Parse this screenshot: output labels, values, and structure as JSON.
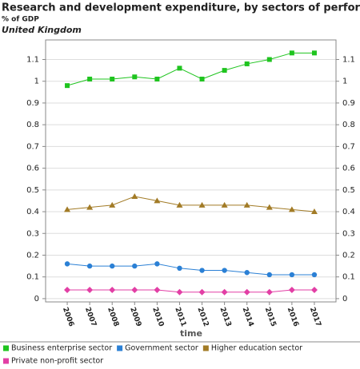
{
  "chart_data": {
    "type": "line",
    "title": "Research and development expenditure, by sectors of performance",
    "subtitle": "% of GDP",
    "annotation": "United Kingdom",
    "x_label": "time",
    "categories": [
      "2006",
      "2007",
      "2008",
      "2009",
      "2010",
      "2011",
      "2012",
      "2013",
      "2014",
      "2015",
      "2016",
      "2017"
    ],
    "series": [
      {
        "name": "Business enterprise sector",
        "color": "#1fc41f",
        "marker": "square",
        "values": [
          0.98,
          1.01,
          1.01,
          1.02,
          1.01,
          1.06,
          1.01,
          1.05,
          1.08,
          1.1,
          1.13,
          1.13
        ]
      },
      {
        "name": "Government sector",
        "color": "#2b80d5",
        "marker": "circle",
        "values": [
          0.16,
          0.15,
          0.15,
          0.15,
          0.16,
          0.14,
          0.13,
          0.13,
          0.12,
          0.11,
          0.11,
          0.11
        ]
      },
      {
        "name": "Higher education sector",
        "color": "#a27b26",
        "marker": "triangle",
        "values": [
          0.41,
          0.42,
          0.43,
          0.47,
          0.45,
          0.43,
          0.43,
          0.43,
          0.43,
          0.42,
          0.41,
          0.4
        ]
      },
      {
        "name": "Private non-profit sector",
        "color": "#e23fa5",
        "marker": "diamond",
        "values": [
          0.04,
          0.04,
          0.04,
          0.04,
          0.04,
          0.03,
          0.03,
          0.03,
          0.03,
          0.03,
          0.04,
          0.04
        ]
      }
    ],
    "ylim": [
      -0.015,
      1.19
    ],
    "yticks": [
      0,
      0.1,
      0.2,
      0.3,
      0.4,
      0.5,
      0.6,
      0.7,
      0.8,
      0.9,
      1,
      1.1
    ],
    "grid": true
  }
}
